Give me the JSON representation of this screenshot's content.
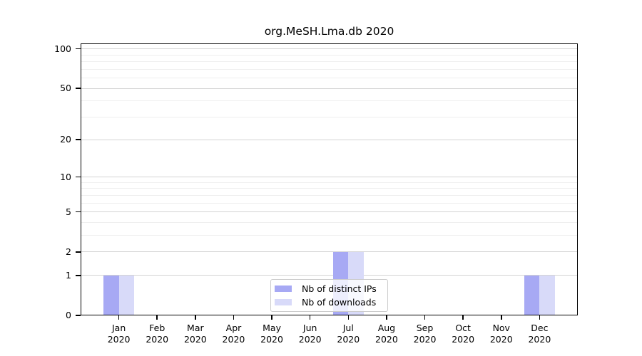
{
  "chart_data": {
    "type": "bar",
    "title": "org.MeSH.Lma.db 2020",
    "categories": [
      "Jan 2020",
      "Feb 2020",
      "Mar 2020",
      "Apr 2020",
      "May 2020",
      "Jun 2020",
      "Jul 2020",
      "Aug 2020",
      "Sep 2020",
      "Oct 2020",
      "Nov 2020",
      "Dec 2020"
    ],
    "x_tick_months": [
      "Jan",
      "Feb",
      "Mar",
      "Apr",
      "May",
      "Jun",
      "Jul",
      "Aug",
      "Sep",
      "Oct",
      "Nov",
      "Dec"
    ],
    "x_tick_year": "2020",
    "series": [
      {
        "name": "Nb of distinct IPs",
        "color": "#a7a9f4",
        "values": [
          1,
          0,
          0,
          0,
          0,
          0,
          2,
          0,
          0,
          0,
          0,
          1
        ]
      },
      {
        "name": "Nb of downloads",
        "color": "#d8daf9",
        "values": [
          1,
          0,
          0,
          0,
          0,
          0,
          2,
          0,
          0,
          0,
          0,
          1
        ]
      }
    ],
    "yscale": "log1p",
    "ylim": [
      0,
      110
    ],
    "xlim": [
      -1,
      12
    ],
    "yticks": {
      "values": [
        0,
        1,
        2,
        5,
        10,
        20,
        50,
        100
      ],
      "labels": [
        "0",
        "1",
        "2",
        "5",
        "10",
        "20",
        "50",
        "100"
      ]
    },
    "minor_yticks": [
      3,
      4,
      6,
      7,
      8,
      9,
      30,
      40,
      60,
      70,
      80,
      90
    ],
    "grid": true,
    "legend_position": "lower center",
    "colors": {
      "grid_major": "#d3d3d3",
      "grid_minor": "#efefef",
      "spine": "#000000",
      "background": "#ffffff"
    }
  }
}
